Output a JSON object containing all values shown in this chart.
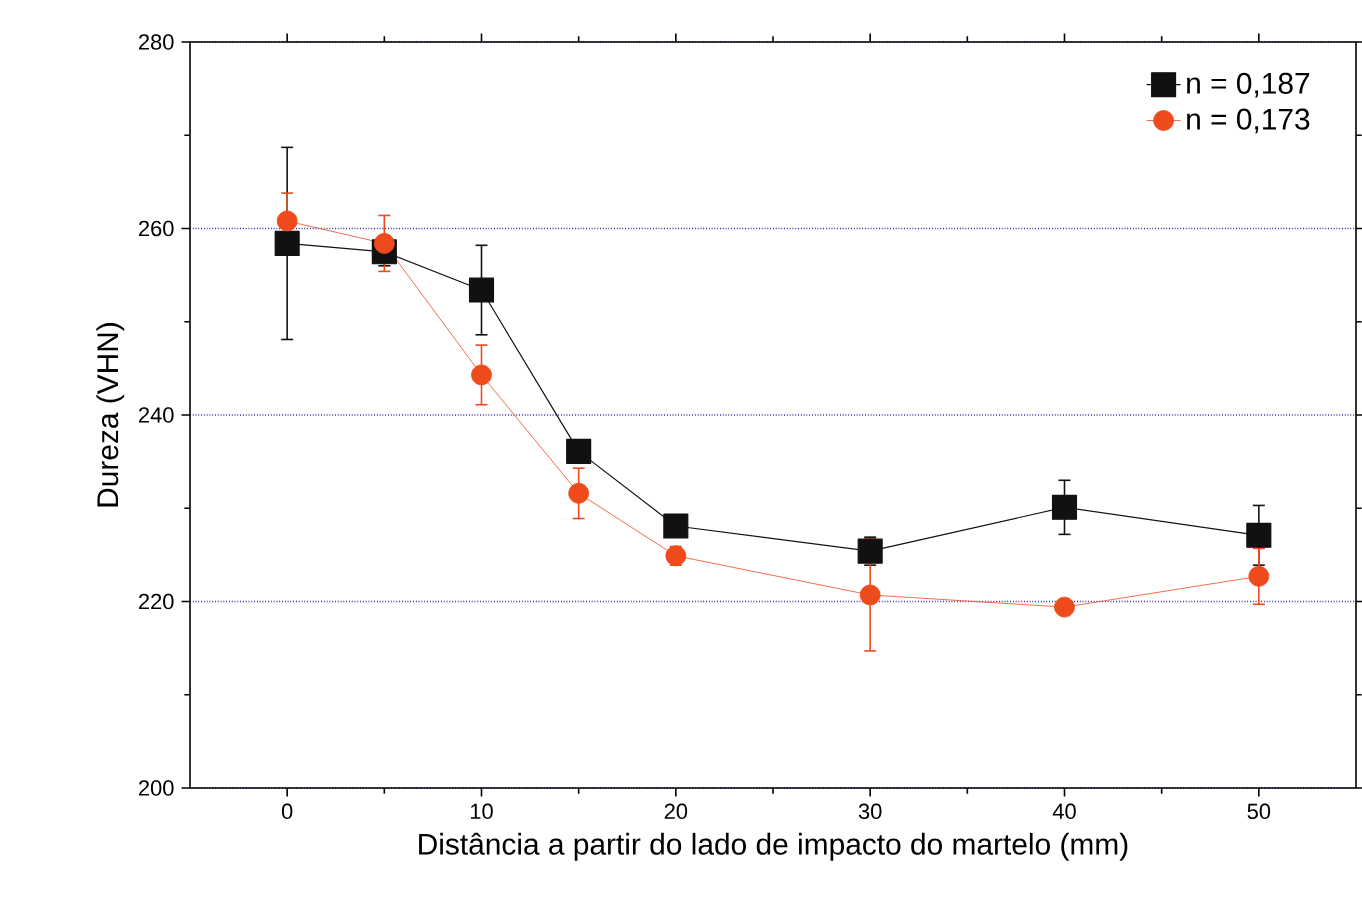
{
  "chart_data": {
    "type": "line",
    "xlabel": "Distância a partir do lado de impacto do martelo (mm)",
    "ylabel": "Dureza (VHN)",
    "x": [
      0,
      5,
      10,
      15,
      20,
      30,
      40,
      50
    ],
    "xlim": [
      -5,
      55
    ],
    "xticks": [
      0,
      10,
      20,
      30,
      40,
      50
    ],
    "ylim": [
      200,
      280
    ],
    "yticks": [
      200,
      220,
      240,
      260,
      280
    ],
    "grid": "y",
    "legend": "top right",
    "series": [
      {
        "name": "n = 0,187",
        "color": "#111111",
        "marker": "square",
        "values": [
          258.4,
          257.5,
          253.4,
          236.1,
          228.1,
          225.4,
          230.1,
          227.1
        ],
        "errors": [
          10.3,
          1.5,
          4.8,
          1,
          0.8,
          1.5,
          2.9,
          3.2
        ]
      },
      {
        "name": "n = 0,173",
        "color": "#ee4a1c",
        "marker": "circle",
        "values": [
          260.8,
          258.4,
          244.3,
          231.6,
          224.9,
          220.7,
          219.4,
          222.7
        ],
        "errors": [
          3,
          3,
          3.2,
          2.7,
          1,
          6,
          0.5,
          3
        ]
      }
    ]
  }
}
